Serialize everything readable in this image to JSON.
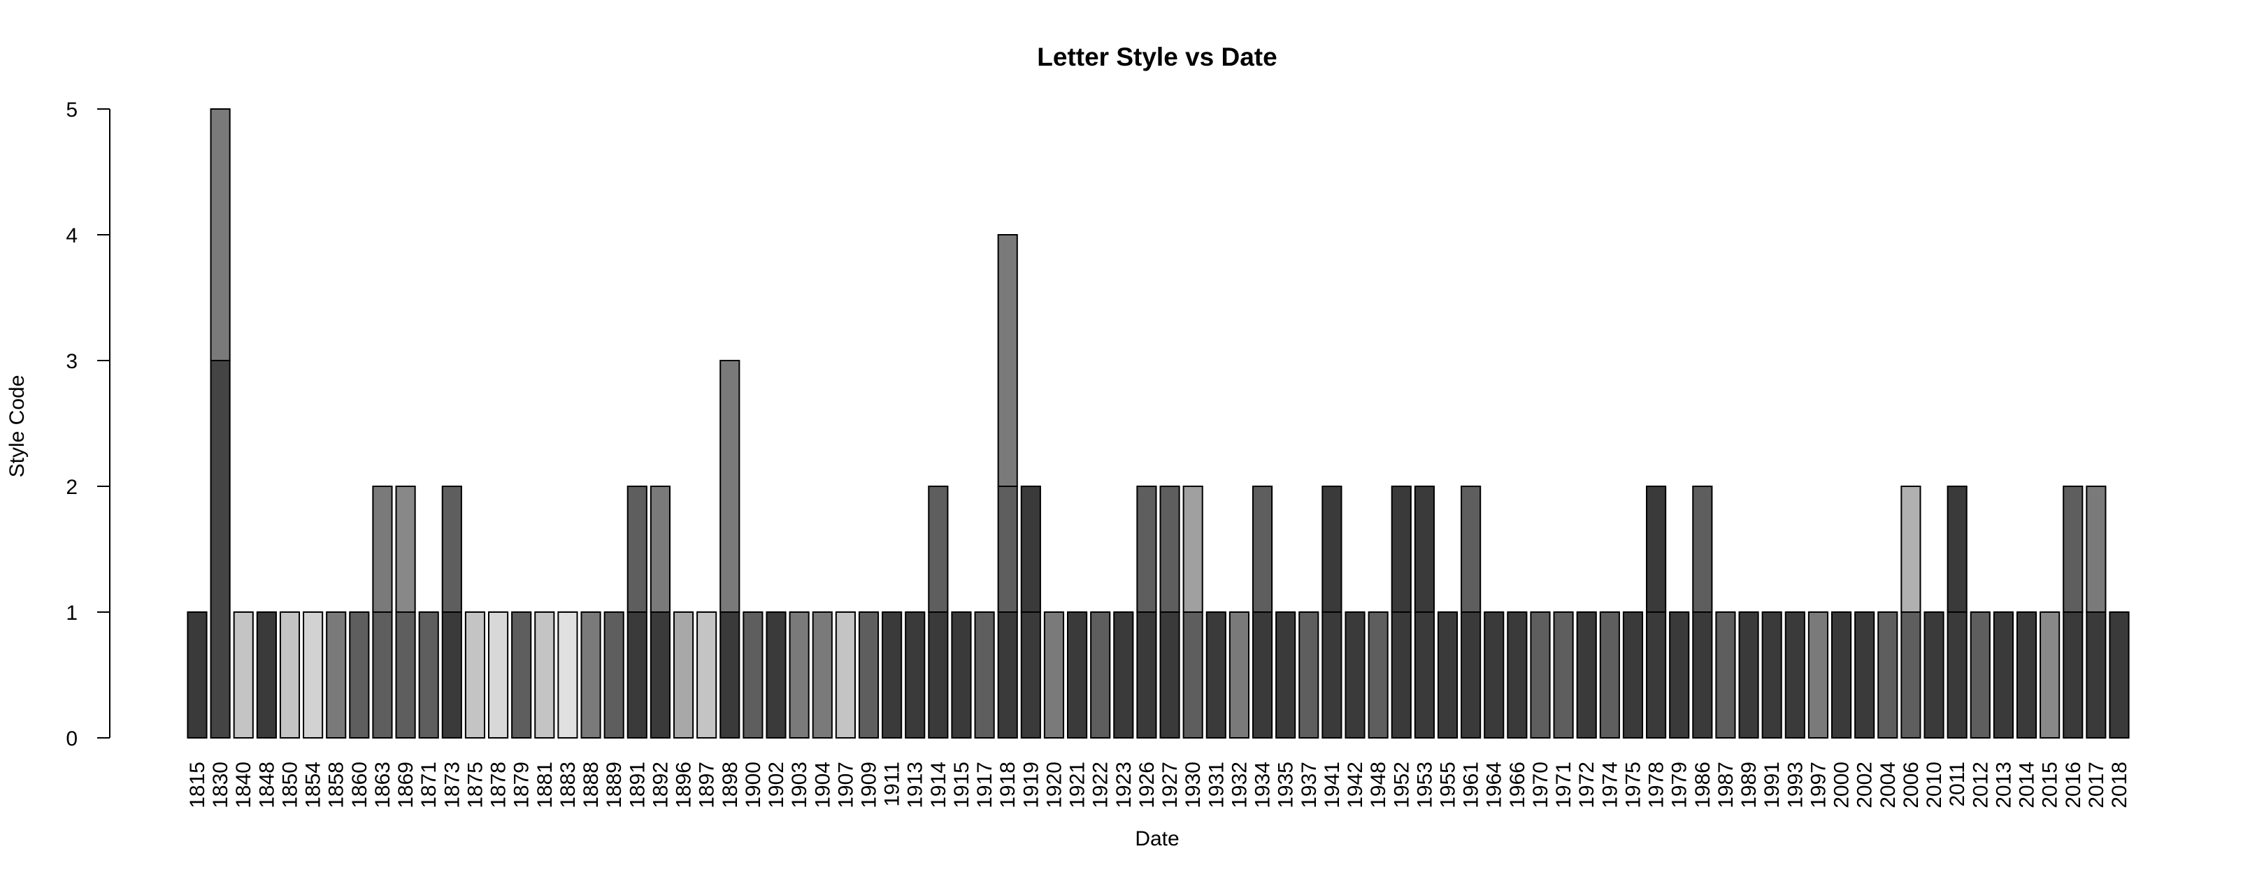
{
  "chart_data": {
    "type": "bar",
    "stacked": true,
    "title": "Letter Style vs Date",
    "xlabel": "Date",
    "ylabel": "Style Code",
    "ylim": [
      0,
      5
    ],
    "yticks": [
      0,
      1,
      2,
      3,
      4,
      5
    ],
    "grid": false,
    "legend": "none",
    "categories": [
      "1815",
      "1830",
      "1840",
      "1848",
      "1850",
      "1854",
      "1858",
      "1860",
      "1863",
      "1869",
      "1871",
      "1873",
      "1875",
      "1878",
      "1879",
      "1881",
      "1883",
      "1888",
      "1889",
      "1891",
      "1892",
      "1896",
      "1897",
      "1898",
      "1900",
      "1902",
      "1903",
      "1904",
      "1907",
      "1909",
      "1911",
      "1913",
      "1914",
      "1915",
      "1917",
      "1918",
      "1919",
      "1920",
      "1921",
      "1922",
      "1923",
      "1926",
      "1927",
      "1930",
      "1931",
      "1932",
      "1934",
      "1935",
      "1937",
      "1941",
      "1942",
      "1948",
      "1952",
      "1953",
      "1955",
      "1961",
      "1964",
      "1966",
      "1970",
      "1971",
      "1972",
      "1974",
      "1975",
      "1978",
      "1979",
      "1986",
      "1987",
      "1989",
      "1991",
      "1993",
      "1997",
      "2000",
      "2002",
      "2004",
      "2006",
      "2010",
      "2011",
      "2012",
      "2013",
      "2014",
      "2015",
      "2016",
      "2017",
      "2018"
    ],
    "stacks": [
      [
        {
          "value": 1,
          "color": "#3a3a3a"
        }
      ],
      [
        {
          "value": 3,
          "color": "#444444"
        },
        {
          "value": 2,
          "color": "#7a7a7a"
        }
      ],
      [
        {
          "value": 1,
          "color": "#c4c4c4"
        }
      ],
      [
        {
          "value": 1,
          "color": "#3a3a3a"
        }
      ],
      [
        {
          "value": 1,
          "color": "#c4c4c4"
        }
      ],
      [
        {
          "value": 1,
          "color": "#d2d2d2"
        }
      ],
      [
        {
          "value": 1,
          "color": "#7a7a7a"
        }
      ],
      [
        {
          "value": 1,
          "color": "#5e5e5e"
        }
      ],
      [
        {
          "value": 1,
          "color": "#5e5e5e"
        },
        {
          "value": 1,
          "color": "#7a7a7a"
        }
      ],
      [
        {
          "value": 1,
          "color": "#5e5e5e"
        },
        {
          "value": 1,
          "color": "#888888"
        }
      ],
      [
        {
          "value": 1,
          "color": "#5e5e5e"
        }
      ],
      [
        {
          "value": 1,
          "color": "#3a3a3a"
        },
        {
          "value": 1,
          "color": "#5e5e5e"
        }
      ],
      [
        {
          "value": 1,
          "color": "#c4c4c4"
        }
      ],
      [
        {
          "value": 1,
          "color": "#d8d8d8"
        }
      ],
      [
        {
          "value": 1,
          "color": "#5e5e5e"
        }
      ],
      [
        {
          "value": 1,
          "color": "#c4c4c4"
        }
      ],
      [
        {
          "value": 1,
          "color": "#e0e0e0"
        }
      ],
      [
        {
          "value": 1,
          "color": "#7a7a7a"
        }
      ],
      [
        {
          "value": 1,
          "color": "#5e5e5e"
        }
      ],
      [
        {
          "value": 1,
          "color": "#3a3a3a"
        },
        {
          "value": 1,
          "color": "#5e5e5e"
        }
      ],
      [
        {
          "value": 1,
          "color": "#3a3a3a"
        },
        {
          "value": 1,
          "color": "#7a7a7a"
        }
      ],
      [
        {
          "value": 1,
          "color": "#a8a8a8"
        }
      ],
      [
        {
          "value": 1,
          "color": "#c4c4c4"
        }
      ],
      [
        {
          "value": 1,
          "color": "#3a3a3a"
        },
        {
          "value": 2,
          "color": "#7a7a7a"
        }
      ],
      [
        {
          "value": 1,
          "color": "#5e5e5e"
        }
      ],
      [
        {
          "value": 1,
          "color": "#3a3a3a"
        }
      ],
      [
        {
          "value": 1,
          "color": "#7a7a7a"
        }
      ],
      [
        {
          "value": 1,
          "color": "#7a7a7a"
        }
      ],
      [
        {
          "value": 1,
          "color": "#c4c4c4"
        }
      ],
      [
        {
          "value": 1,
          "color": "#5e5e5e"
        }
      ],
      [
        {
          "value": 1,
          "color": "#3a3a3a"
        }
      ],
      [
        {
          "value": 1,
          "color": "#3a3a3a"
        }
      ],
      [
        {
          "value": 1,
          "color": "#3a3a3a"
        },
        {
          "value": 1,
          "color": "#5e5e5e"
        }
      ],
      [
        {
          "value": 1,
          "color": "#3a3a3a"
        }
      ],
      [
        {
          "value": 1,
          "color": "#5e5e5e"
        }
      ],
      [
        {
          "value": 1,
          "color": "#3a3a3a"
        },
        {
          "value": 1,
          "color": "#5e5e5e"
        },
        {
          "value": 2,
          "color": "#7a7a7a"
        }
      ],
      [
        {
          "value": 1,
          "color": "#3a3a3a"
        },
        {
          "value": 1,
          "color": "#3a3a3a"
        }
      ],
      [
        {
          "value": 1,
          "color": "#7a7a7a"
        }
      ],
      [
        {
          "value": 1,
          "color": "#3a3a3a"
        }
      ],
      [
        {
          "value": 1,
          "color": "#5e5e5e"
        }
      ],
      [
        {
          "value": 1,
          "color": "#3a3a3a"
        }
      ],
      [
        {
          "value": 1,
          "color": "#3a3a3a"
        },
        {
          "value": 1,
          "color": "#5e5e5e"
        }
      ],
      [
        {
          "value": 1,
          "color": "#3a3a3a"
        },
        {
          "value": 1,
          "color": "#5e5e5e"
        }
      ],
      [
        {
          "value": 1,
          "color": "#5e5e5e"
        },
        {
          "value": 1,
          "color": "#a0a0a0"
        }
      ],
      [
        {
          "value": 1,
          "color": "#3a3a3a"
        }
      ],
      [
        {
          "value": 1,
          "color": "#7a7a7a"
        }
      ],
      [
        {
          "value": 1,
          "color": "#3a3a3a"
        },
        {
          "value": 1,
          "color": "#5e5e5e"
        }
      ],
      [
        {
          "value": 1,
          "color": "#3a3a3a"
        }
      ],
      [
        {
          "value": 1,
          "color": "#5e5e5e"
        }
      ],
      [
        {
          "value": 1,
          "color": "#3a3a3a"
        },
        {
          "value": 1,
          "color": "#3a3a3a"
        }
      ],
      [
        {
          "value": 1,
          "color": "#3a3a3a"
        }
      ],
      [
        {
          "value": 1,
          "color": "#5e5e5e"
        }
      ],
      [
        {
          "value": 1,
          "color": "#3a3a3a"
        },
        {
          "value": 1,
          "color": "#3a3a3a"
        }
      ],
      [
        {
          "value": 1,
          "color": "#3a3a3a"
        },
        {
          "value": 1,
          "color": "#3a3a3a"
        }
      ],
      [
        {
          "value": 1,
          "color": "#3a3a3a"
        }
      ],
      [
        {
          "value": 1,
          "color": "#3a3a3a"
        },
        {
          "value": 1,
          "color": "#5e5e5e"
        }
      ],
      [
        {
          "value": 1,
          "color": "#3a3a3a"
        }
      ],
      [
        {
          "value": 1,
          "color": "#3a3a3a"
        }
      ],
      [
        {
          "value": 1,
          "color": "#5e5e5e"
        }
      ],
      [
        {
          "value": 1,
          "color": "#5e5e5e"
        }
      ],
      [
        {
          "value": 1,
          "color": "#3a3a3a"
        }
      ],
      [
        {
          "value": 1,
          "color": "#5e5e5e"
        }
      ],
      [
        {
          "value": 1,
          "color": "#3a3a3a"
        }
      ],
      [
        {
          "value": 1,
          "color": "#3a3a3a"
        },
        {
          "value": 1,
          "color": "#3a3a3a"
        }
      ],
      [
        {
          "value": 1,
          "color": "#3a3a3a"
        }
      ],
      [
        {
          "value": 1,
          "color": "#3a3a3a"
        },
        {
          "value": 1,
          "color": "#5e5e5e"
        }
      ],
      [
        {
          "value": 1,
          "color": "#5e5e5e"
        }
      ],
      [
        {
          "value": 1,
          "color": "#3a3a3a"
        }
      ],
      [
        {
          "value": 1,
          "color": "#3a3a3a"
        }
      ],
      [
        {
          "value": 1,
          "color": "#3a3a3a"
        }
      ],
      [
        {
          "value": 1,
          "color": "#7a7a7a"
        }
      ],
      [
        {
          "value": 1,
          "color": "#3a3a3a"
        }
      ],
      [
        {
          "value": 1,
          "color": "#3a3a3a"
        }
      ],
      [
        {
          "value": 1,
          "color": "#5e5e5e"
        }
      ],
      [
        {
          "value": 1,
          "color": "#5e5e5e"
        },
        {
          "value": 1,
          "color": "#b0b0b0"
        }
      ],
      [
        {
          "value": 1,
          "color": "#3a3a3a"
        }
      ],
      [
        {
          "value": 1,
          "color": "#3a3a3a"
        },
        {
          "value": 1,
          "color": "#3a3a3a"
        }
      ],
      [
        {
          "value": 1,
          "color": "#5e5e5e"
        }
      ],
      [
        {
          "value": 1,
          "color": "#3a3a3a"
        }
      ],
      [
        {
          "value": 1,
          "color": "#3a3a3a"
        }
      ],
      [
        {
          "value": 1,
          "color": "#888888"
        }
      ],
      [
        {
          "value": 1,
          "color": "#3a3a3a"
        },
        {
          "value": 1,
          "color": "#5e5e5e"
        }
      ],
      [
        {
          "value": 1,
          "color": "#3a3a3a"
        },
        {
          "value": 1,
          "color": "#7a7a7a"
        }
      ],
      [
        {
          "value": 1,
          "color": "#3a3a3a"
        }
      ]
    ]
  }
}
